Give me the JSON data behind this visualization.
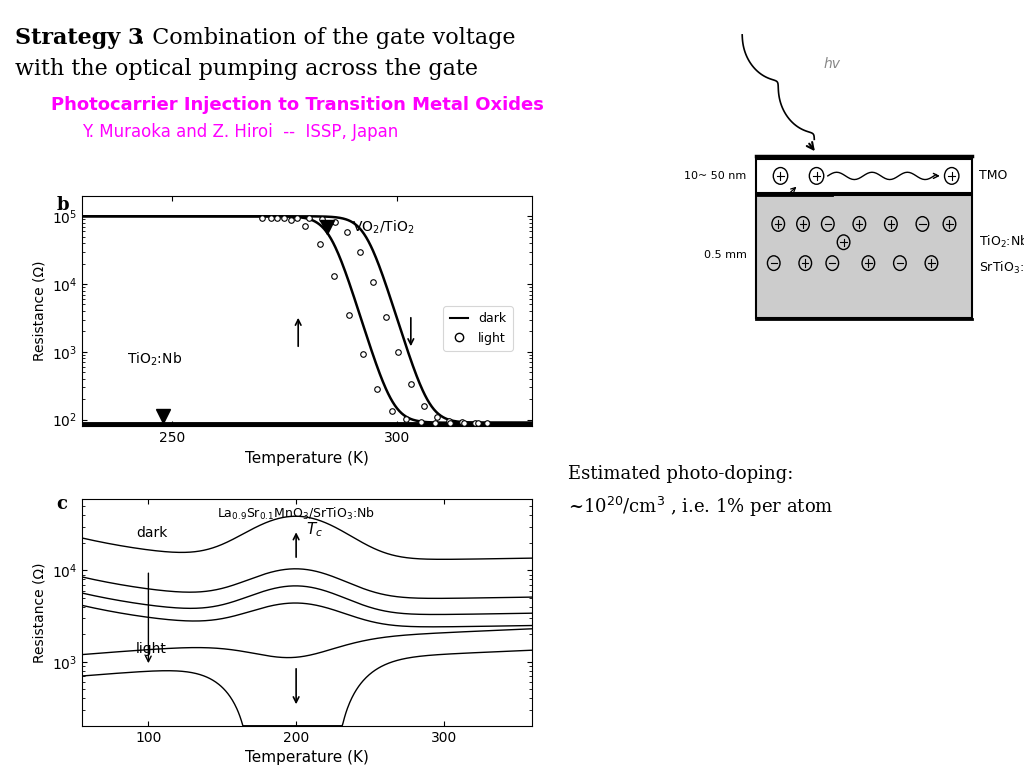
{
  "title_bold": "Strategy 3",
  "title_rest_line1": ". Combination of the gate voltage",
  "title_line2": "with the optical pumping across the gate",
  "subtitle_line1": "Photocarrier Injection to Transition Metal Oxides",
  "subtitle_line2": "Y. Muraoka and Z. Hiroi  --  ISSP, Japan",
  "subtitle_color": "#FF00FF",
  "panel_b_xlabel": "Temperature (K)",
  "panel_b_ylabel": "Resistance (Ω)",
  "panel_b_xlim": [
    230,
    330
  ],
  "panel_b_ylim": [
    80,
    200000.0
  ],
  "panel_b_xticks": [
    250,
    300
  ],
  "panel_c_xlabel": "Temperature (K)",
  "panel_c_ylabel": "Resistance (Ω)",
  "panel_c_xlim": [
    55,
    360
  ],
  "panel_c_ylim": [
    200,
    60000.0
  ],
  "panel_c_xticks": [
    100,
    200,
    300
  ],
  "photo_doping_line1": "Estimated photo-doping:",
  "photo_doping_line2": "~10²⁰/cm³ , i.e. 1% per atom",
  "bg_color": "#ffffff"
}
